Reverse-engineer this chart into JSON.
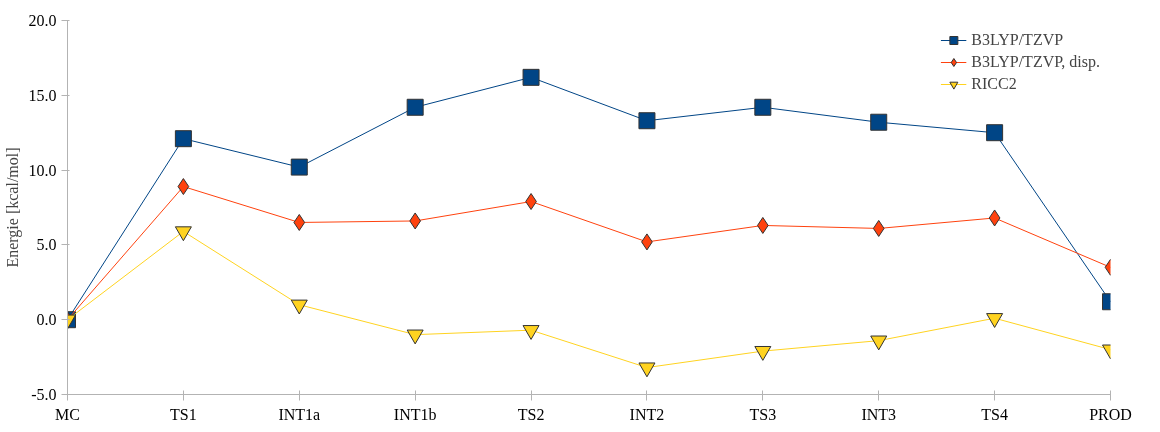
{
  "chart_data": {
    "type": "line",
    "ylabel": "Energie [kcal/mol]",
    "categories": [
      "MC",
      "TS1",
      "INT1a",
      "INT1b",
      "TS2",
      "INT2",
      "TS3",
      "INT3",
      "TS4",
      "PROD"
    ],
    "series": [
      {
        "name": "B3LYP/TZVP",
        "color": "#004586",
        "marker": "square",
        "values": [
          0,
          12.1,
          10.2,
          14.2,
          16.2,
          13.3,
          14.2,
          13.2,
          12.5,
          1.2
        ]
      },
      {
        "name": "B3LYP/TZVP, disp.",
        "color": "#ff420e",
        "marker": "diamond",
        "values": [
          0,
          8.9,
          6.5,
          6.6,
          7.9,
          5.2,
          6.3,
          6.1,
          6.8,
          3.5
        ]
      },
      {
        "name": "RICC2",
        "color": "#ffd320",
        "marker": "triangle",
        "values": [
          0,
          5.9,
          1.0,
          -1.0,
          -0.7,
          -3.2,
          -2.1,
          -1.4,
          0.1,
          -2.0
        ]
      }
    ],
    "ylim": [
      -5,
      20
    ],
    "yticks": [
      {
        "value": -5,
        "label": "-5.0"
      },
      {
        "value": 0,
        "label": "0.0"
      },
      {
        "value": 5,
        "label": "5.0"
      },
      {
        "value": 10,
        "label": "10.0"
      },
      {
        "value": 15,
        "label": "15.0"
      },
      {
        "value": 20,
        "label": "20.0"
      }
    ],
    "legend": "top right",
    "grid": false,
    "line_style": "solid"
  }
}
